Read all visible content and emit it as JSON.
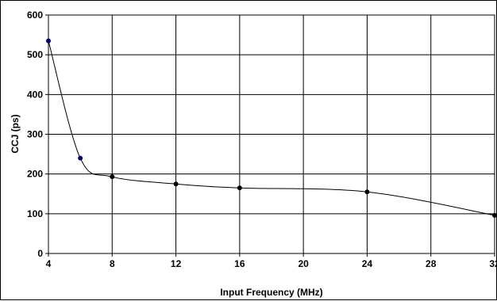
{
  "chart_data": {
    "type": "line",
    "title": "",
    "xlabel": "Input Frequency (MHz)",
    "ylabel": "CCJ (ps)",
    "categories": [
      "4",
      "6",
      "8",
      "12",
      "16",
      "20",
      "24",
      "28",
      "32"
    ],
    "x_tick_labels": [
      "4",
      "8",
      "12",
      "16",
      "20",
      "24",
      "28",
      "32"
    ],
    "y_tick_labels": [
      "0",
      "100",
      "200",
      "300",
      "400",
      "500",
      "600"
    ],
    "ylim": [
      0,
      600
    ],
    "grid": true,
    "legend": "none",
    "smooth": true,
    "series": [
      {
        "values": [
          535,
          240,
          193,
          175,
          165,
          null,
          155,
          null,
          96
        ]
      }
    ],
    "colors": {
      "line": "#000000",
      "marker_early": "#000066",
      "marker": "#000000",
      "grid": "#000000"
    }
  }
}
